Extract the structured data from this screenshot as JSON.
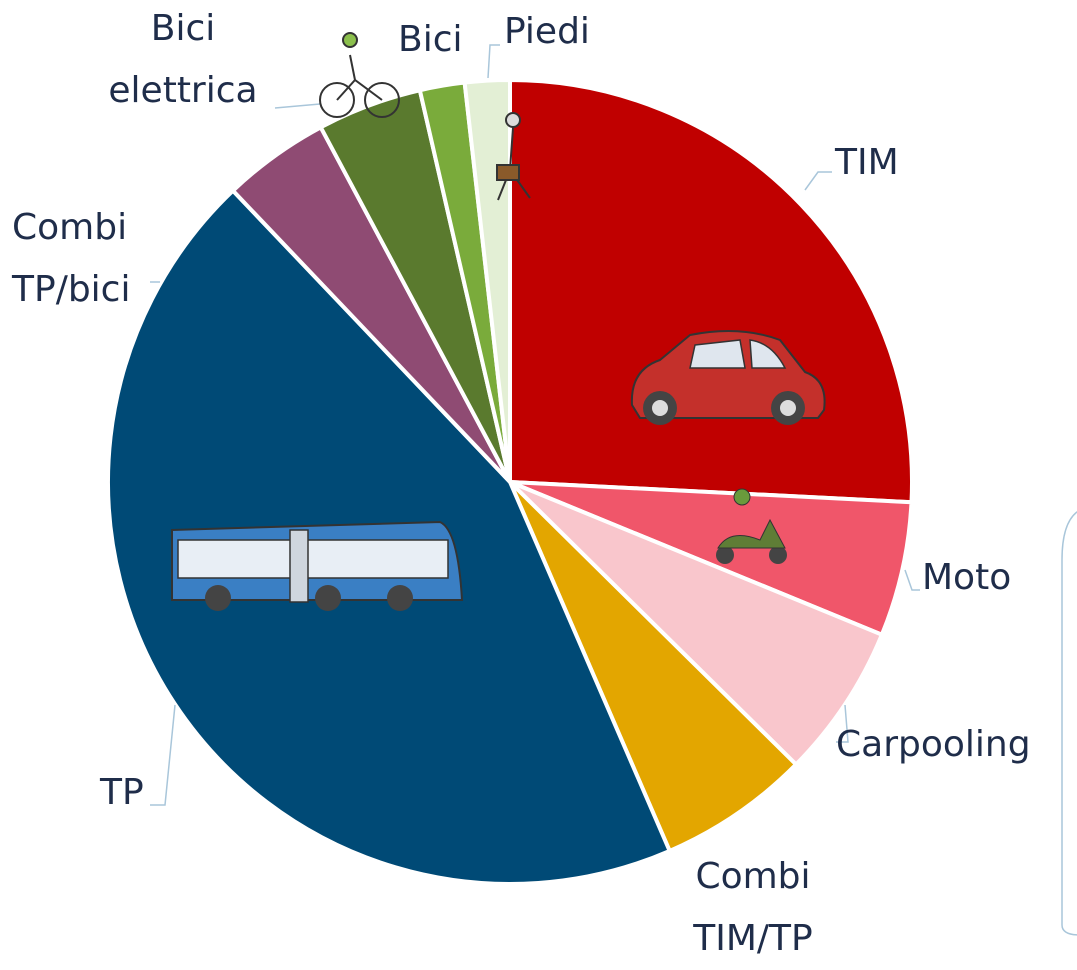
{
  "chart_data": {
    "type": "pie",
    "categories": [
      "TIM",
      "Moto",
      "Carpooling",
      "Combi TIM/TP",
      "TP",
      "Combi TP/bici",
      "Bici elettrica",
      "Bici",
      "Piedi"
    ],
    "values": [
      25.8,
      5.4,
      6.2,
      6.1,
      44.4,
      4.3,
      4.2,
      1.8,
      1.8
    ],
    "colors": [
      "#c00000",
      "#f0566a",
      "#f9c6cc",
      "#e3a600",
      "#004a76",
      "#8f4b73",
      "#5a7a2e",
      "#7aab3b",
      "#e3efd5"
    ],
    "start_angle": 0,
    "direction": "clockwise"
  }
}
